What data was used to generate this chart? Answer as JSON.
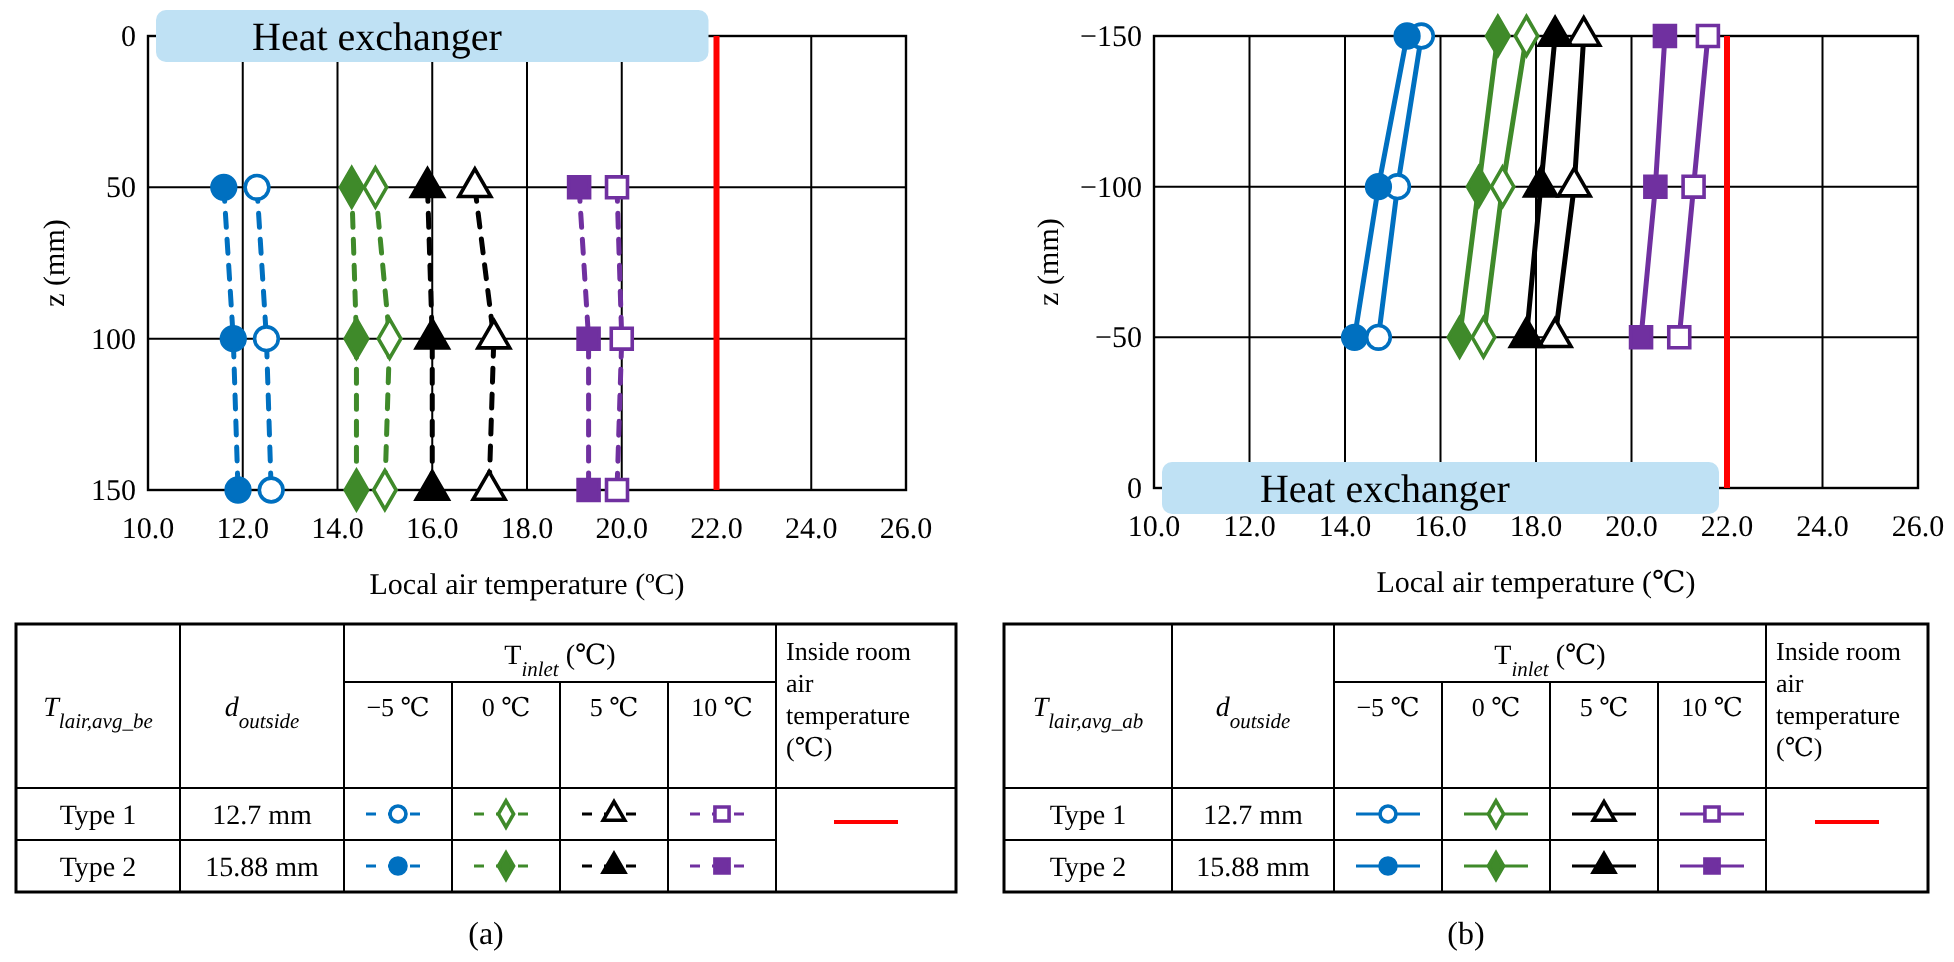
{
  "chart_data": [
    {
      "type": "line",
      "orientation": "horizontal",
      "xlabel": "Local air temperature (ºC)",
      "ylabel": "z (mm)",
      "xlim": [
        10,
        26
      ],
      "xticks": [
        {
          "value": 10,
          "label": "10.0"
        },
        {
          "value": 12,
          "label": "12.0"
        },
        {
          "value": 14,
          "label": "14.0"
        },
        {
          "value": 16,
          "label": "16.0"
        },
        {
          "value": 18,
          "label": "18.0"
        },
        {
          "value": 20,
          "label": "20.0"
        },
        {
          "value": 22,
          "label": "22.0"
        },
        {
          "value": 24,
          "label": "24.0"
        },
        {
          "value": 26,
          "label": "26.0"
        }
      ],
      "ylim": [
        150,
        0
      ],
      "yticks": [
        0,
        50,
        100,
        150
      ],
      "grid": true,
      "line_style": "dashed",
      "x": [
        50,
        100,
        150
      ],
      "series": [
        {
          "color": "#0070c0",
          "marker": "circle",
          "values": [
            12.3,
            12.5,
            12.6
          ]
        },
        {
          "color": "#0070c0",
          "marker": "circle",
          "values": [
            11.6,
            11.8,
            11.9
          ]
        },
        {
          "color": "#3f8a2a",
          "marker": "diamond",
          "values": [
            14.8,
            15.1,
            15.0
          ]
        },
        {
          "color": "#3f8a2a",
          "marker": "diamond",
          "values": [
            14.3,
            14.4,
            14.4
          ]
        },
        {
          "color": "#000000",
          "marker": "triangle",
          "values": [
            16.9,
            17.3,
            17.2
          ]
        },
        {
          "color": "#000000",
          "marker": "triangle",
          "values": [
            15.9,
            16.0,
            16.0
          ]
        },
        {
          "color": "#7030a0",
          "marker": "square",
          "values": [
            19.9,
            20.0,
            19.9
          ]
        },
        {
          "color": "#7030a0",
          "marker": "square",
          "values": [
            19.1,
            19.3,
            19.3
          ]
        }
      ],
      "ref_lines": [
        {
          "axis": "x",
          "value": 22,
          "color": "#ff0000"
        }
      ],
      "annotations": [
        "Heat exchanger",
        "T$_{lair,avg_be}$",
        "d$_{outside}$",
        "T$_{inlet}$ (℃)",
        "Inside room air temperature (℃)",
        "−5 ℃",
        "0 ℃",
        "5 ℃",
        "10 ℃",
        "Type 1",
        "12.7 mm",
        "Type 2",
        "15.88 mm",
        "(a)"
      ]
    },
    {
      "type": "line",
      "orientation": "horizontal",
      "xlabel": "Local air temperature (℃)",
      "ylabel": "z (mm)",
      "xlim": [
        10,
        26
      ],
      "xticks": [
        {
          "value": 10,
          "label": "10.0"
        },
        {
          "value": 12,
          "label": "12.0"
        },
        {
          "value": 14,
          "label": "14.0"
        },
        {
          "value": 16,
          "label": "16.0"
        },
        {
          "value": 18,
          "label": "18.0"
        },
        {
          "value": 20,
          "label": "20.0"
        },
        {
          "value": 22,
          "label": "22.0"
        },
        {
          "value": 24,
          "label": "24.0"
        },
        {
          "value": 26,
          "label": "26.0"
        }
      ],
      "ylim": [
        0,
        -150
      ],
      "yticks": [
        {
          "value": -150,
          "label": "−150"
        },
        {
          "value": -100,
          "label": "−100"
        },
        {
          "value": -50,
          "label": "−50"
        },
        0
      ],
      "grid": true,
      "line_style": "solid",
      "x": [
        -150,
        -100,
        -50
      ],
      "series": [
        {
          "color": "#0070c0",
          "marker": "circle",
          "values": [
            15.6,
            15.1,
            14.7
          ]
        },
        {
          "color": "#0070c0",
          "marker": "circle",
          "values": [
            15.3,
            14.7,
            14.2
          ]
        },
        {
          "color": "#3f8a2a",
          "marker": "diamond",
          "values": [
            17.8,
            17.3,
            16.9
          ]
        },
        {
          "color": "#3f8a2a",
          "marker": "diamond",
          "values": [
            17.2,
            16.8,
            16.4
          ]
        },
        {
          "color": "#000000",
          "marker": "triangle",
          "values": [
            19.0,
            18.8,
            18.4
          ]
        },
        {
          "color": "#000000",
          "marker": "triangle",
          "values": [
            18.4,
            18.1,
            17.8
          ]
        },
        {
          "color": "#7030a0",
          "marker": "square",
          "values": [
            21.6,
            21.3,
            21.0
          ]
        },
        {
          "color": "#7030a0",
          "marker": "square",
          "values": [
            20.7,
            20.5,
            20.2
          ]
        }
      ],
      "ref_lines": [
        {
          "axis": "x",
          "value": 22,
          "color": "#ff0000"
        }
      ],
      "annotations": [
        "Heat exchanger",
        "T$_{lair,avg_ab}$",
        "d$_{outside}$",
        "T$_{inlet}$ (℃)",
        "Inside room air temperature (℃)",
        "−5 ℃",
        "0 ℃",
        "5 ℃",
        "10 ℃",
        "Type 1",
        "12.7 mm",
        "Type 2",
        "15.88 mm",
        "(b)"
      ]
    }
  ]
}
